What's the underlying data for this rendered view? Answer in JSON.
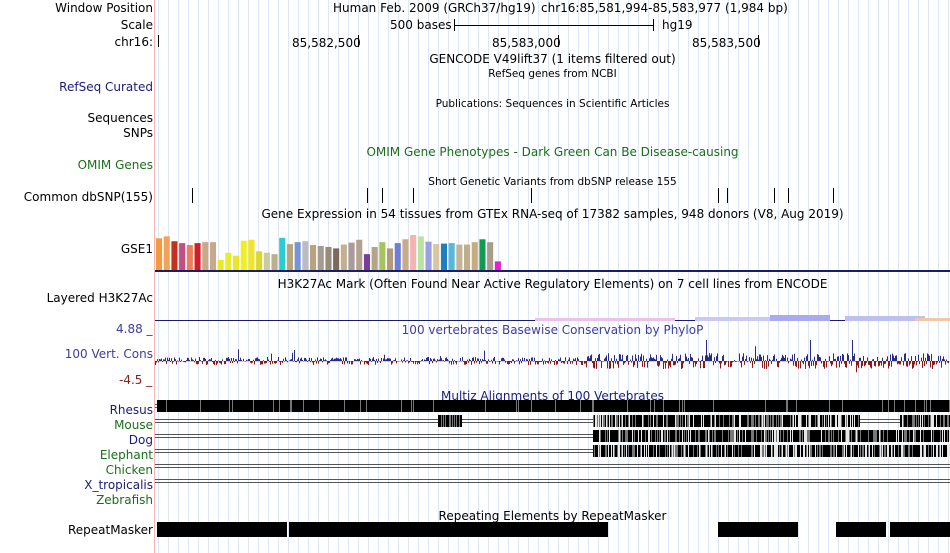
{
  "header": {
    "window_position_label": "Window Position",
    "assembly_text": "Human Feb. 2009 (GRCh37/hg19)",
    "position_text": "chr16:85,581,994-85,583,977 (1,984 bp)",
    "scale_label": "Scale",
    "scale_text": "500 bases",
    "scale_db": "hg19",
    "chrom_label": "chr16:",
    "ticks": [
      "85,582,500",
      "85,583,000",
      "85,583,500"
    ]
  },
  "tracks": {
    "gencode_title": "GENCODE V49lift37 (1 items filtered out)",
    "refseq_label": "RefSeq Curated",
    "refseq_title": "RefSeq genes from NCBI",
    "publications_title": "Publications: Sequences in Scientific Articles",
    "sequences_label": "Sequences",
    "snps_label": "SNPs",
    "omim_label": "OMIM Genes",
    "omim_title": "OMIM Gene Phenotypes - Dark Green Can Be Disease-causing",
    "dbsnp_title": "Short Genetic Variants from dbSNP release 155",
    "dbsnp_label": "Common dbSNP(155)",
    "gtex_title": "Gene Expression in 54 tissues from GTEx RNA-seq of 17382 samples, 948 donors (V8, Aug 2019)",
    "gtex_label": "GSE1",
    "h3k27ac_title": "H3K27Ac Mark (Often Found Near Active Regulatory Elements) on 7 cell lines from ENCODE",
    "h3k27ac_label": "Layered H3K27Ac",
    "cons_max": "4.88 _",
    "cons_title": "100 vertebrates Basewise Conservation by PhyloP",
    "cons_label": "100 Vert. Cons",
    "cons_min": "-4.5 _",
    "multiz_title": "Multiz Alignments of 100 Vertebrates",
    "species": [
      "Rhesus",
      "Mouse",
      "Dog",
      "Elephant",
      "Chicken",
      "X_tropicalis",
      "Zebrafish"
    ],
    "repeat_title": "Repeating Elements by RepeatMasker",
    "repeat_label": "RepeatMasker"
  },
  "colors": {
    "gtex_bars": [
      "#f29b3e",
      "#f2a25a",
      "#c2321c",
      "#c14f82",
      "#ee7f5a",
      "#d01f2a",
      "#c9a789",
      "#c8a88b",
      "#eaea22",
      "#ebeb2a",
      "#ece62b",
      "#f0ef27",
      "#efe62b",
      "#d9d92c",
      "#c9c9a2",
      "#bbaf8c",
      "#28cdd0",
      "#b9a47e",
      "#7596d4",
      "#bbbac5",
      "#b7a37c",
      "#a59b90",
      "#9a8a7a",
      "#7b6a5a",
      "#c2b090",
      "#aa9a9a",
      "#b3a38e",
      "#7a3c98",
      "#b4a488",
      "#a5c55a",
      "#b39a7a",
      "#6d7fd6",
      "#c7ab8a",
      "#f6b4b0",
      "#b9e3a1",
      "#9aa0e0",
      "#d7c6a2",
      "#1f7ec0",
      "#56b8d8",
      "#c6b296",
      "#bfae8c",
      "#c6ad80",
      "#109b50",
      "#a89c8a",
      "#e221d2"
    ],
    "gtex_heights": [
      0.66,
      0.7,
      0.6,
      0.56,
      0.52,
      0.56,
      0.58,
      0.58,
      0.21,
      0.36,
      0.3,
      0.61,
      0.63,
      0.39,
      0.36,
      0.33,
      0.67,
      0.54,
      0.58,
      0.6,
      0.52,
      0.5,
      0.48,
      0.45,
      0.53,
      0.57,
      0.63,
      0.33,
      0.48,
      0.58,
      0.45,
      0.56,
      0.64,
      0.73,
      0.7,
      0.59,
      0.54,
      0.55,
      0.56,
      0.53,
      0.53,
      0.58,
      0.64,
      0.58,
      0.18
    ]
  }
}
